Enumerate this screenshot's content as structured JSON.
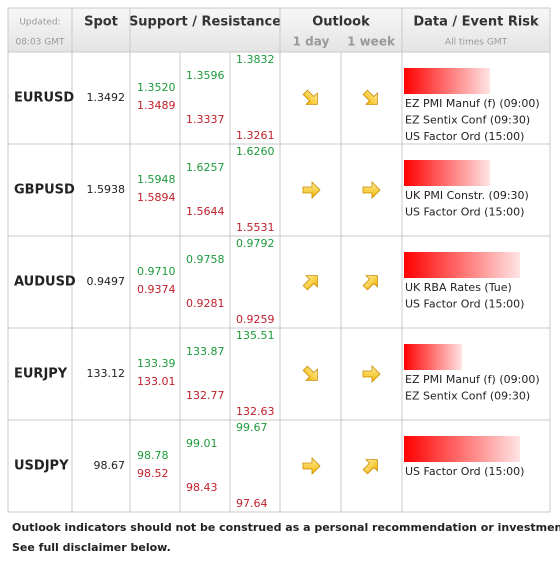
{
  "header": {
    "updated": "Updated:",
    "time": "08:03 GMT",
    "spot": "Spot",
    "support_resistance": "Support / Resistance",
    "outlook": "Outlook",
    "day": "1 day",
    "week": "1 week",
    "event_risk": "Data / Event Risk",
    "times_note": "All times GMT"
  },
  "rows": [
    {
      "pair": "EURUSD",
      "spot": "1.3492",
      "resistance": [
        "1.3520",
        "1.3596",
        "1.3832"
      ],
      "support": [
        "1.3489",
        "1.3337",
        "1.3261"
      ],
      "events": [
        "EZ PMI Manuf (f) (09:00)",
        "EZ Sentix Conf (09:30)",
        "US Factor Ord (15:00)"
      ]
    },
    {
      "pair": "GBPUSD",
      "spot": "1.5938",
      "resistance": [
        "1.5948",
        "1.6257",
        "1.6260"
      ],
      "support": [
        "1.5894",
        "1.5644",
        "1.5531"
      ],
      "events": [
        "UK PMI Constr. (09:30)",
        "US Factor Ord (15:00)"
      ]
    },
    {
      "pair": "AUDUSD",
      "spot": "0.9497",
      "resistance": [
        "0.9710",
        "0.9758",
        "0.9792"
      ],
      "support": [
        "0.9374",
        "0.9281",
        "0.9259"
      ],
      "events": [
        "UK RBA Rates (Tue)",
        "US Factor Ord (15:00)"
      ]
    },
    {
      "pair": "EURJPY",
      "spot": "133.12",
      "resistance": [
        "133.39",
        "133.87",
        "135.51"
      ],
      "support": [
        "133.01",
        "132.77",
        "132.63"
      ],
      "events": [
        "EZ PMI Manuf (f) (09:00)",
        "EZ Sentix Conf (09:30)"
      ]
    },
    {
      "pair": "USDJPY",
      "spot": "98.67",
      "resistance": [
        "98.78",
        "99.01",
        "99.67"
      ],
      "support": [
        "98.52",
        "98.43",
        "97.64"
      ],
      "events": [
        "US Factor Ord (15:00)"
      ]
    }
  ],
  "footer": [
    "Outlook indicators should not be construed as a personal recommendation or investment advice.",
    "See full disclaimer below."
  ]
}
